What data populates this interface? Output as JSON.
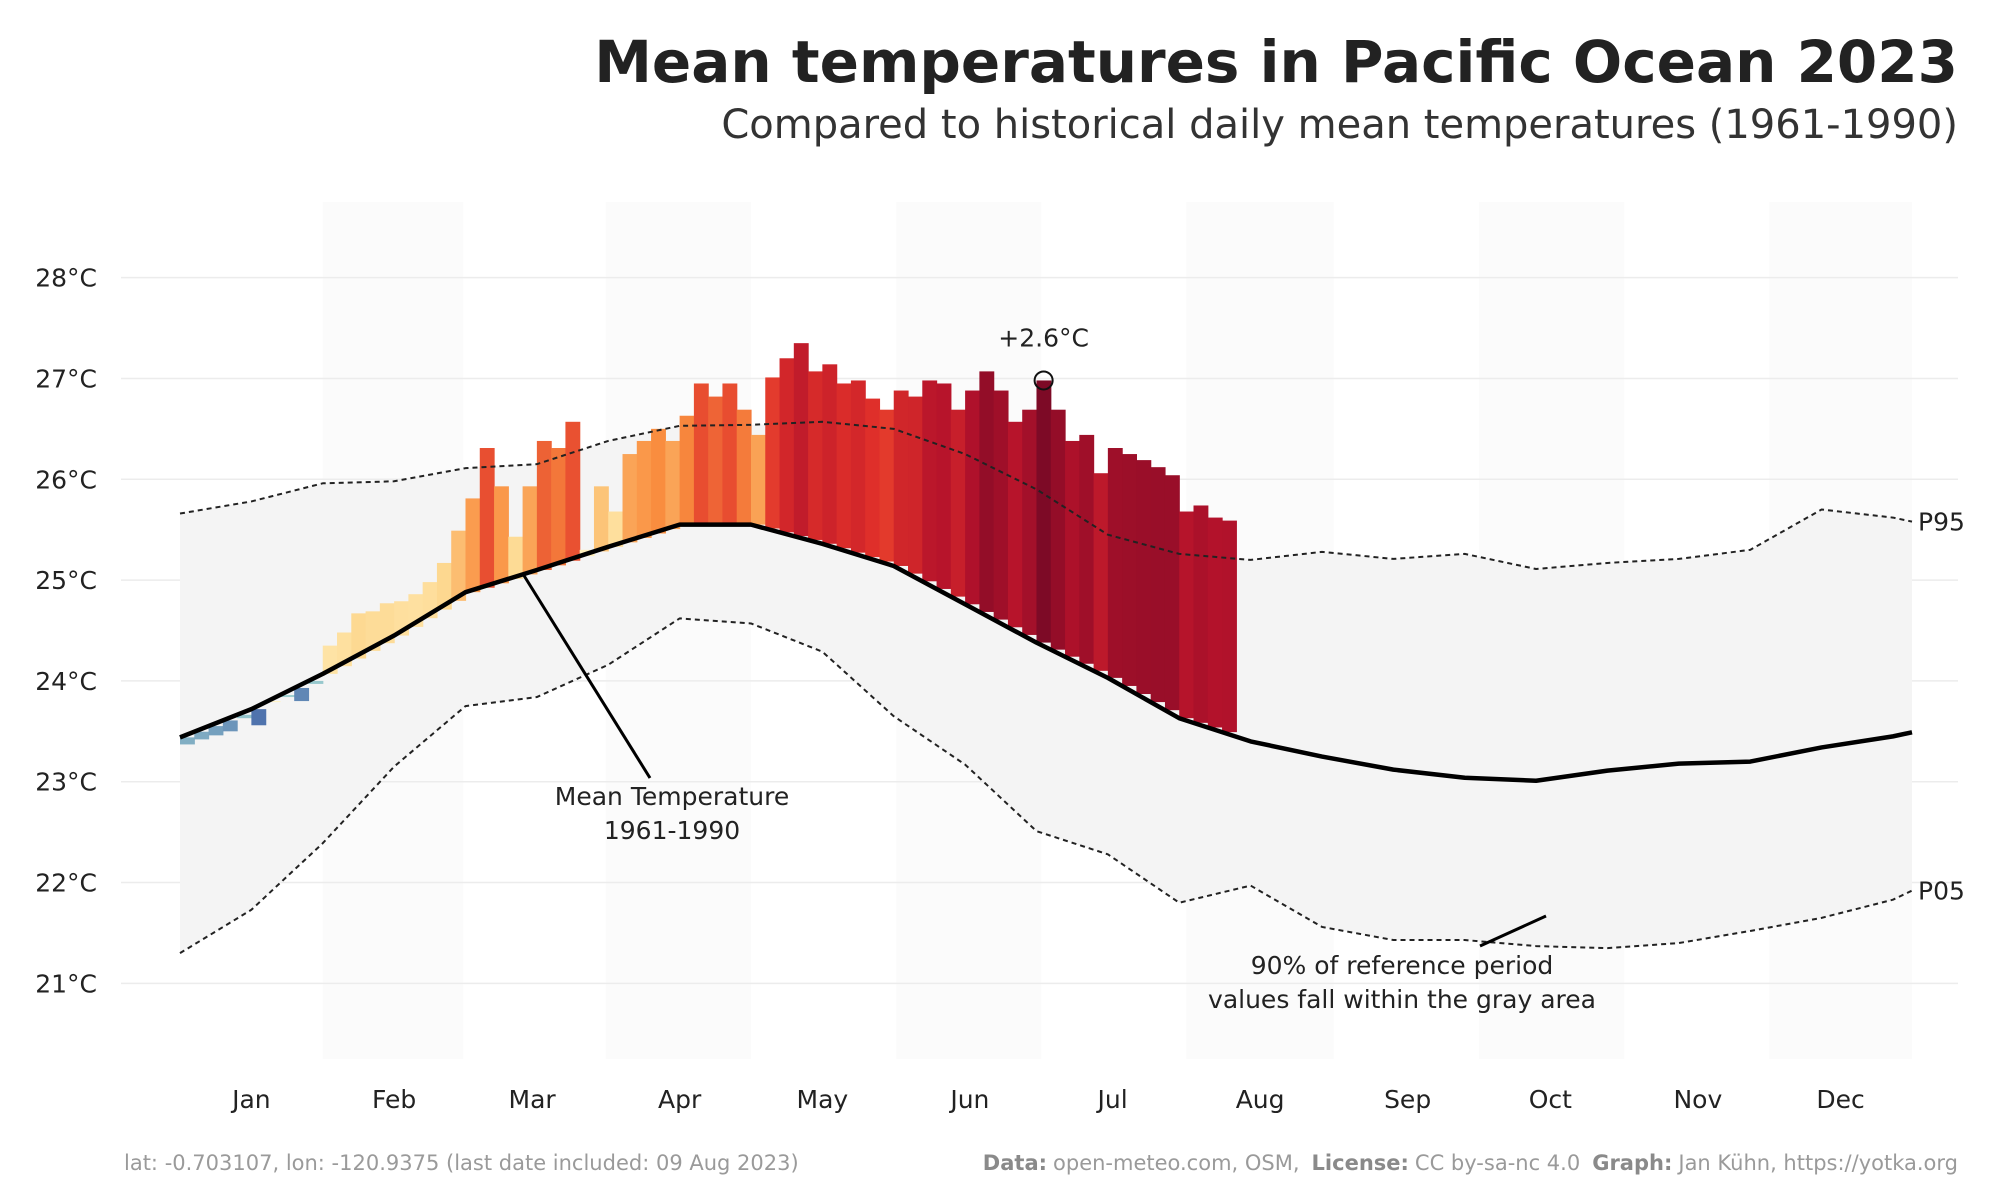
{
  "chart_data": {
    "type": "climate-band",
    "title": "Mean temperatures in Pacific Ocean 2023",
    "subtitle": "Compared to historical daily mean temperatures (1961-1990)",
    "xlim": [
      1,
      365
    ],
    "ylim": [
      20.25,
      28.75
    ],
    "xticks": [
      {
        "value": 16,
        "label": "Jan"
      },
      {
        "value": 46,
        "label": "Feb"
      },
      {
        "value": 75,
        "label": "Mar"
      },
      {
        "value": 106,
        "label": "Apr"
      },
      {
        "value": 136,
        "label": "May"
      },
      {
        "value": 167,
        "label": "Jun"
      },
      {
        "value": 197,
        "label": "Jul"
      },
      {
        "value": 228,
        "label": "Aug"
      },
      {
        "value": 259,
        "label": "Sep"
      },
      {
        "value": 289,
        "label": "Oct"
      },
      {
        "value": 320,
        "label": "Nov"
      },
      {
        "value": 350,
        "label": "Dec"
      }
    ],
    "yticks": [
      {
        "value": 21,
        "label": "21°C"
      },
      {
        "value": 22,
        "label": "22°C"
      },
      {
        "value": 23,
        "label": "23°C"
      },
      {
        "value": 24,
        "label": "24°C"
      },
      {
        "value": 25,
        "label": "25°C"
      },
      {
        "value": 26,
        "label": "26°C"
      },
      {
        "value": 27,
        "label": "27°C"
      },
      {
        "value": 28,
        "label": "28°C"
      }
    ],
    "grid": true,
    "x": [
      1,
      16,
      31,
      46,
      61,
      76,
      91,
      106,
      121,
      136,
      151,
      166,
      181,
      196,
      211,
      226,
      241,
      256,
      271,
      286,
      301,
      316,
      331,
      346,
      361,
      365
    ],
    "series": [
      {
        "name": "P95",
        "color": "#222222",
        "style": "dashed",
        "values": [
          25.66,
          25.78,
          25.96,
          25.98,
          26.11,
          26.15,
          26.38,
          26.53,
          26.54,
          26.57,
          26.5,
          26.25,
          25.9,
          25.45,
          25.26,
          25.2,
          25.28,
          25.21,
          25.26,
          25.11,
          25.17,
          25.21,
          25.3,
          25.7,
          25.62,
          25.58
        ]
      },
      {
        "name": "P05",
        "color": "#222222",
        "style": "dashed",
        "values": [
          21.3,
          21.73,
          22.39,
          23.15,
          23.75,
          23.84,
          24.16,
          24.62,
          24.57,
          24.29,
          23.65,
          23.17,
          22.51,
          22.28,
          21.8,
          21.97,
          21.56,
          21.43,
          21.43,
          21.37,
          21.35,
          21.4,
          21.52,
          21.65,
          21.83,
          21.92
        ]
      },
      {
        "color": "#000000",
        "style": "solid",
        "values": [
          23.44,
          23.72,
          24.07,
          24.45,
          24.88,
          25.1,
          25.33,
          25.55,
          25.55,
          25.36,
          25.14,
          24.76,
          24.38,
          24.03,
          23.63,
          23.4,
          23.25,
          23.12,
          23.04,
          23.01,
          23.11,
          23.18,
          23.2,
          23.34,
          23.45,
          23.49
        ]
      }
    ],
    "band_color": "#f4f4f4",
    "month_band_color": "#fbfbfb",
    "daily": {
      "x": [
        1,
        4,
        7,
        10,
        13,
        16,
        19,
        22,
        25,
        28,
        31,
        34,
        37,
        40,
        43,
        46,
        49,
        52,
        55,
        58,
        61,
        64,
        67,
        70,
        73,
        76,
        79,
        82,
        85,
        88,
        91,
        94,
        97,
        100,
        103,
        106,
        109,
        112,
        115,
        118,
        121,
        124,
        127,
        130,
        133,
        136,
        139,
        142,
        145,
        148,
        151,
        154,
        157,
        160,
        163,
        166,
        169,
        172,
        175,
        178,
        181,
        184,
        187,
        190,
        193,
        196,
        199,
        202,
        205,
        208,
        211,
        214,
        217,
        220
      ],
      "values": [
        23.37,
        23.42,
        23.46,
        23.5,
        23.63,
        23.56,
        23.8,
        23.84,
        23.8,
        23.97,
        24.35,
        24.48,
        24.67,
        24.69,
        24.77,
        24.79,
        24.86,
        24.98,
        25.17,
        25.49,
        25.81,
        26.31,
        25.93,
        25.43,
        25.93,
        26.38,
        26.31,
        26.57,
        25.3,
        25.93,
        25.68,
        26.25,
        26.38,
        26.5,
        26.38,
        26.63,
        26.95,
        26.82,
        26.95,
        26.69,
        26.44,
        27.01,
        27.2,
        27.35,
        27.07,
        27.14,
        26.95,
        26.98,
        26.8,
        26.69,
        26.88,
        26.82,
        26.98,
        26.95,
        26.69,
        26.88,
        27.07,
        26.88,
        26.57,
        26.69,
        26.98,
        26.69,
        26.38,
        26.44,
        26.06,
        26.31,
        26.25,
        26.19,
        26.12,
        26.04,
        25.68,
        25.74,
        25.62,
        25.59
      ]
    },
    "colormap_negative": [
      "#4f73ad",
      "#a8dcd5"
    ],
    "colormap_positive": [
      "#fff3c4",
      "#fdd58a",
      "#f98d3f",
      "#e0302a",
      "#b3122b",
      "#7d0a26"
    ],
    "annotations": {
      "peak": {
        "value": 2.6,
        "label": "+2.6°C"
      },
      "mean": [
        "Mean Temperature",
        "1961-1990"
      ],
      "band": [
        "90% of reference period",
        "values fall within the gray area"
      ]
    },
    "source": "lat: -0.703107, lon: -120.9375 (last date included: 09 Aug 2023)",
    "credits": [
      [
        "Data:",
        "open-meteo.com, OSM,"
      ],
      [
        "License:",
        "CC by-sa-nc 4.0"
      ],
      [
        "Graph:",
        "Jan Kühn, https://yotka.org"
      ]
    ]
  }
}
